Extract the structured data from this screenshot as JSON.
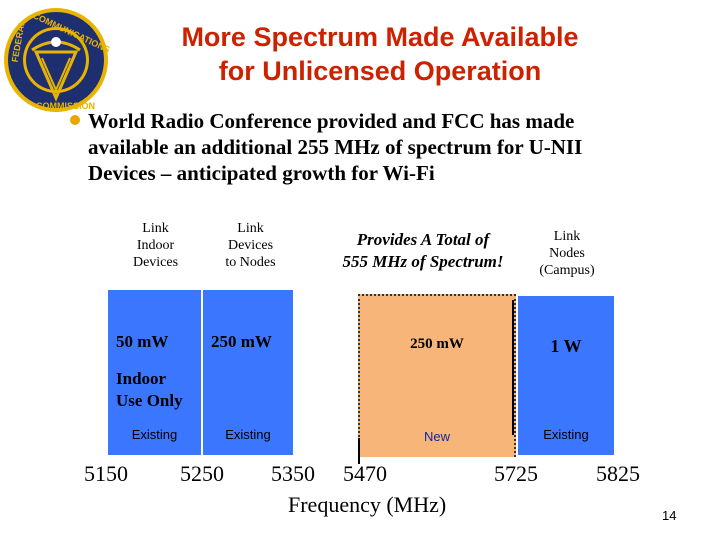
{
  "slide": {
    "title_line1": "More Spectrum Made Available",
    "title_line2": "for Unlicensed Operation",
    "bullet_text": "World Radio Conference provided and FCC has made available an additional  255 MHz of spectrum for U-NII Devices – anticipated growth for Wi-Fi",
    "page_number": "14",
    "seal": {
      "ring_text": "FEDERAL COMMUNICATIONS COMMISSION",
      "colors": {
        "ring": "#1d2f6e",
        "gold": "#e8b400"
      }
    }
  },
  "diagram": {
    "headers": {
      "col1": [
        "Link",
        "Indoor",
        "Devices"
      ],
      "col2": [
        "Link",
        "Devices",
        "to Nodes"
      ],
      "center": [
        "Provides A Total of",
        "555 MHz of Spectrum!"
      ],
      "col4": [
        "Link",
        "Nodes",
        "(Campus)"
      ]
    },
    "bands": [
      {
        "power": "50 mW",
        "note": [
          "Indoor",
          "Use Only"
        ],
        "status": "Existing",
        "color": "#3b76ff"
      },
      {
        "power": "250 mW",
        "status": "Existing",
        "color": "#3b76ff"
      },
      {
        "power": "250 mW",
        "status": "New",
        "color": "#f7b57a"
      },
      {
        "power": "1 W",
        "status": "Existing",
        "color": "#3b76ff"
      }
    ],
    "ticks": [
      "5150",
      "5250",
      "5350",
      "5470",
      "5725",
      "5825"
    ],
    "axis_label": "Frequency (MHz)"
  }
}
